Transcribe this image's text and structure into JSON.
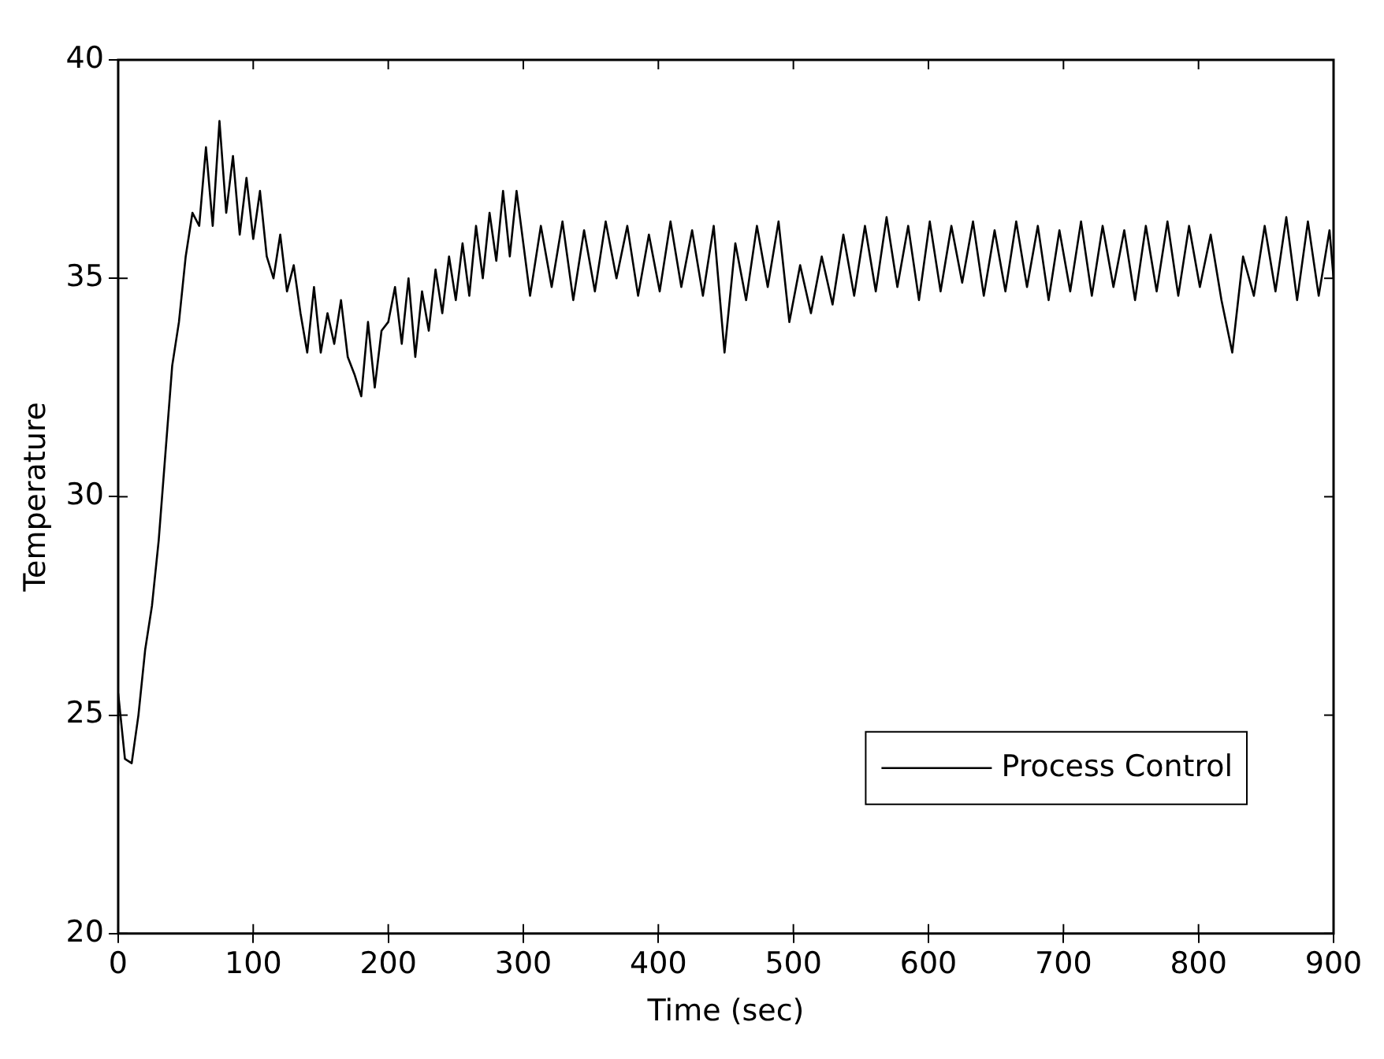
{
  "chart_data": {
    "type": "line",
    "xlabel": "Time (sec)",
    "ylabel": "Temperature",
    "xlim": [
      0,
      900
    ],
    "xticks": [
      0,
      100,
      200,
      300,
      400,
      500,
      600,
      700,
      800,
      900
    ],
    "ylim": [
      20,
      40
    ],
    "yticks": [
      20,
      25,
      30,
      35,
      40
    ],
    "grid": false,
    "legend": "bottom right",
    "marker": "none",
    "line_style": "solid",
    "series": [
      {
        "name": "Process Control",
        "color": "#000000",
        "x": [
          0,
          5,
          10,
          15,
          20,
          25,
          30,
          35,
          40,
          45,
          50,
          55,
          60,
          65,
          70,
          75,
          80,
          85,
          90,
          95,
          100,
          105,
          110,
          115,
          120,
          125,
          130,
          135,
          140,
          145,
          150,
          155,
          160,
          165,
          170,
          175,
          180,
          185,
          190,
          195,
          200,
          205,
          210,
          215,
          220,
          225,
          230,
          235,
          240,
          245,
          250,
          255,
          260,
          265,
          270,
          275,
          280,
          285,
          290,
          295,
          300,
          305,
          313,
          321,
          329,
          337,
          345,
          353,
          361,
          369,
          377,
          385,
          393,
          401,
          409,
          417,
          425,
          433,
          441,
          449,
          457,
          465,
          473,
          481,
          489,
          497,
          505,
          513,
          521,
          529,
          537,
          545,
          553,
          561,
          569,
          577,
          585,
          593,
          601,
          609,
          617,
          625,
          633,
          641,
          649,
          657,
          665,
          673,
          681,
          689,
          697,
          705,
          713,
          721,
          729,
          737,
          745,
          753,
          761,
          769,
          777,
          785,
          793,
          801,
          809,
          817,
          825,
          833,
          841,
          849,
          857,
          865,
          873,
          881,
          889,
          897,
          900
        ],
        "values": [
          25.5,
          24,
          23.9,
          25,
          26.5,
          27.5,
          29,
          31,
          33,
          34,
          35.5,
          36.5,
          36.2,
          38,
          36.2,
          38.6,
          36.5,
          37.8,
          36,
          37.3,
          35.9,
          37,
          35.5,
          35,
          36,
          34.7,
          35.3,
          34.2,
          33.3,
          34.8,
          33.3,
          34.2,
          33.5,
          34.5,
          33.2,
          32.8,
          32.3,
          34,
          32.5,
          33.8,
          34,
          34.8,
          33.5,
          35,
          33.2,
          34.7,
          33.8,
          35.2,
          34.2,
          35.5,
          34.5,
          35.8,
          34.6,
          36.2,
          35,
          36.5,
          35.4,
          37,
          35.5,
          37,
          35.8,
          34.6,
          36.2,
          34.8,
          36.3,
          34.5,
          36.1,
          34.7,
          36.3,
          35,
          36.2,
          34.6,
          36,
          34.7,
          36.3,
          34.8,
          36.1,
          34.6,
          36.2,
          33.3,
          35.8,
          34.5,
          36.2,
          34.8,
          36.3,
          34,
          35.3,
          34.2,
          35.5,
          34.4,
          36,
          34.6,
          36.2,
          34.7,
          36.4,
          34.8,
          36.2,
          34.5,
          36.3,
          34.7,
          36.2,
          34.9,
          36.3,
          34.6,
          36.1,
          34.7,
          36.3,
          34.8,
          36.2,
          34.5,
          36.1,
          34.7,
          36.3,
          34.6,
          36.2,
          34.8,
          36.1,
          34.5,
          36.2,
          34.7,
          36.3,
          34.6,
          36.2,
          34.8,
          36,
          34.5,
          33.3,
          35.5,
          34.6,
          36.2,
          34.7,
          36.4,
          34.5,
          36.3,
          34.6,
          36.1,
          35
        ]
      }
    ]
  }
}
